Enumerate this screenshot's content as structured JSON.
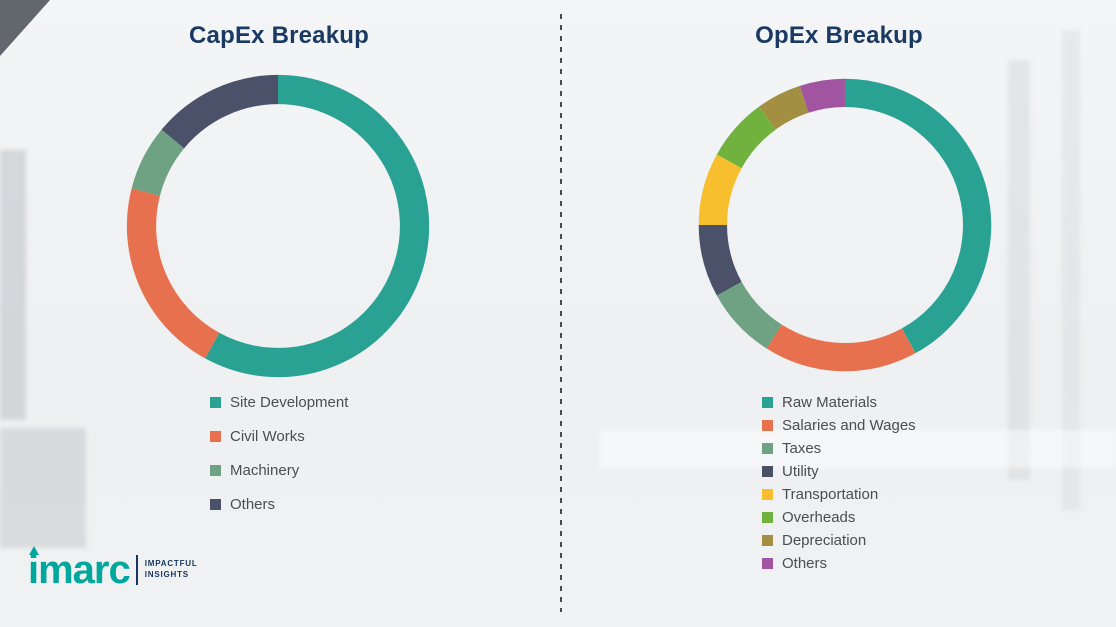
{
  "chart_data": [
    {
      "type": "pie",
      "style": "donut",
      "title": "CapEx Breakup",
      "legend_position": "bottom",
      "labels": [
        "Site Development",
        "Civil Works",
        "Machinery",
        "Others"
      ],
      "values": [
        58,
        21,
        7,
        14
      ],
      "colors": [
        "#2aa293",
        "#e7714f",
        "#6fa282",
        "#4a5168"
      ]
    },
    {
      "type": "pie",
      "style": "donut",
      "title": "OpEx Breakup",
      "legend_position": "bottom",
      "labels": [
        "Raw Materials",
        "Salaries and Wages",
        "Taxes",
        "Utility",
        "Transportation",
        "Overheads",
        "Depreciation",
        "Others"
      ],
      "values": [
        42,
        17,
        8,
        8,
        8,
        7,
        5,
        5
      ],
      "colors": [
        "#2aa293",
        "#e7714f",
        "#6fa282",
        "#4a5168",
        "#f7be2d",
        "#71b23e",
        "#a28f41",
        "#a155a0"
      ]
    }
  ],
  "logo": {
    "brand": "imarc",
    "tagline_line1": "IMPACTFUL",
    "tagline_line2": "INSIGHTS"
  }
}
